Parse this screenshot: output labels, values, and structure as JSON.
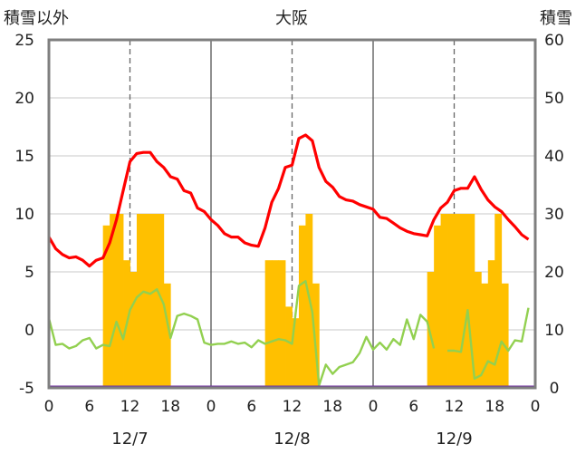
{
  "chart_data": {
    "type": "bar+line",
    "title": "大阪",
    "y_left_label": "積雪以外",
    "y_right_label": "積雪",
    "y_left_range": [
      -5,
      25
    ],
    "y_left_ticks": [
      "25",
      "20",
      "15",
      "10",
      "5",
      "0",
      "-5"
    ],
    "y_right_range": [
      0,
      60
    ],
    "y_right_ticks": [
      "60",
      "50",
      "40",
      "30",
      "20",
      "10",
      "0"
    ],
    "x_ticks": [
      "0",
      "6",
      "12",
      "18",
      "0",
      "6",
      "12",
      "18",
      "0",
      "6",
      "12",
      "18",
      "0"
    ],
    "x_tick_hours": [
      0,
      6,
      12,
      18,
      24,
      30,
      36,
      42,
      48,
      54,
      60,
      66,
      72
    ],
    "dates": [
      "12/7",
      "12/8",
      "12/9"
    ],
    "date_hours": [
      12,
      36,
      60
    ],
    "day_boundaries": [
      24,
      48
    ],
    "noon_lines": [
      12,
      36,
      60
    ],
    "snow_bars": {
      "axis": "right",
      "color": "#FFC000",
      "values": [
        [
          8,
          28
        ],
        [
          9,
          30
        ],
        [
          10,
          30
        ],
        [
          11,
          22
        ],
        [
          12,
          20
        ],
        [
          13,
          30
        ],
        [
          14,
          30
        ],
        [
          15,
          30
        ],
        [
          16,
          30
        ],
        [
          17,
          18
        ],
        [
          32,
          22
        ],
        [
          33,
          22
        ],
        [
          34,
          22
        ],
        [
          35,
          14
        ],
        [
          36,
          12
        ],
        [
          37,
          28
        ],
        [
          38,
          30
        ],
        [
          39,
          18
        ],
        [
          56,
          20
        ],
        [
          57,
          28
        ],
        [
          58,
          30
        ],
        [
          59,
          30
        ],
        [
          60,
          30
        ],
        [
          61,
          30
        ],
        [
          62,
          30
        ],
        [
          63,
          20
        ],
        [
          64,
          18
        ],
        [
          65,
          22
        ],
        [
          66,
          30
        ],
        [
          67,
          18
        ]
      ]
    },
    "series": [
      {
        "axis": "left",
        "color": "#FF0000",
        "values": [
          [
            0,
            8
          ],
          [
            1,
            7
          ],
          [
            2,
            6.5
          ],
          [
            3,
            6.2
          ],
          [
            4,
            6.3
          ],
          [
            5,
            6
          ],
          [
            6,
            5.5
          ],
          [
            7,
            6
          ],
          [
            8,
            6.2
          ],
          [
            9,
            7.5
          ],
          [
            10,
            9.5
          ],
          [
            11,
            12
          ],
          [
            12,
            14.5
          ],
          [
            13,
            15.2
          ],
          [
            14,
            15.3
          ],
          [
            15,
            15.3
          ],
          [
            16,
            14.5
          ],
          [
            17,
            14
          ],
          [
            18,
            13.2
          ],
          [
            19,
            13
          ],
          [
            20,
            12
          ],
          [
            21,
            11.8
          ],
          [
            22,
            10.5
          ],
          [
            23,
            10.2
          ],
          [
            24,
            9.5
          ],
          [
            25,
            9
          ],
          [
            26,
            8.3
          ],
          [
            27,
            8
          ],
          [
            28,
            8
          ],
          [
            29,
            7.5
          ],
          [
            30,
            7.3
          ],
          [
            31,
            7.2
          ],
          [
            32,
            8.8
          ],
          [
            33,
            11
          ],
          [
            34,
            12.2
          ],
          [
            35,
            14
          ],
          [
            36,
            14.2
          ],
          [
            37,
            16.5
          ],
          [
            38,
            16.8
          ],
          [
            39,
            16.3
          ],
          [
            40,
            14
          ],
          [
            41,
            12.8
          ],
          [
            42,
            12.3
          ],
          [
            43,
            11.5
          ],
          [
            44,
            11.2
          ],
          [
            45,
            11.1
          ],
          [
            46,
            10.8
          ],
          [
            47,
            10.6
          ],
          [
            48,
            10.4
          ],
          [
            49,
            9.7
          ],
          [
            50,
            9.6
          ],
          [
            51,
            9.2
          ],
          [
            52,
            8.8
          ],
          [
            53,
            8.5
          ],
          [
            54,
            8.3
          ],
          [
            55,
            8.2
          ],
          [
            56,
            8.1
          ],
          [
            57,
            9.5
          ],
          [
            58,
            10.5
          ],
          [
            59,
            11
          ],
          [
            60,
            12
          ],
          [
            61,
            12.2
          ],
          [
            62,
            12.2
          ],
          [
            63,
            13.2
          ],
          [
            64,
            12.1
          ],
          [
            65,
            11.2
          ],
          [
            66,
            10.6
          ],
          [
            67,
            10.2
          ],
          [
            68,
            9.5
          ],
          [
            69,
            8.9
          ],
          [
            70,
            8.2
          ],
          [
            71,
            7.8
          ]
        ]
      },
      {
        "axis": "left",
        "color": "#92D050",
        "values": [
          [
            0,
            1
          ],
          [
            1,
            -1.3
          ],
          [
            2,
            -1.2
          ],
          [
            3,
            -1.6
          ],
          [
            4,
            -1.4
          ],
          [
            5,
            -0.9
          ],
          [
            6,
            -0.7
          ],
          [
            7,
            -1.6
          ],
          [
            8,
            -1.3
          ],
          [
            9,
            -1.4
          ],
          [
            10,
            0.7
          ],
          [
            11,
            -0.8
          ],
          [
            12,
            1.7
          ],
          [
            13,
            2.8
          ],
          [
            14,
            3.3
          ],
          [
            15,
            3.1
          ],
          [
            16,
            3.5
          ],
          [
            17,
            2.2
          ],
          [
            18,
            -0.7
          ],
          [
            19,
            1.2
          ],
          [
            20,
            1.4
          ],
          [
            21,
            1.2
          ],
          [
            22,
            0.9
          ],
          [
            23,
            -1.1
          ],
          [
            24,
            -1.3
          ],
          [
            25,
            -1.2
          ],
          [
            26,
            -1.2
          ],
          [
            27,
            -1
          ],
          [
            28,
            -1.2
          ],
          [
            29,
            -1.1
          ],
          [
            30,
            -1.5
          ],
          [
            31,
            -0.9
          ],
          [
            32,
            -1.2
          ],
          [
            33,
            -1
          ],
          [
            34,
            -0.8
          ],
          [
            35,
            -0.9
          ],
          [
            36,
            -1.2
          ],
          [
            37,
            3.8
          ],
          [
            38,
            4.2
          ],
          [
            39,
            1.5
          ],
          [
            40,
            -4.8
          ],
          [
            41,
            -3
          ],
          [
            42,
            -3.8
          ],
          [
            43,
            -3.2
          ],
          [
            44,
            -3
          ],
          [
            45,
            -2.8
          ],
          [
            46,
            -2
          ],
          [
            47,
            -0.6
          ],
          [
            48,
            -1.7
          ],
          [
            49,
            -1.1
          ],
          [
            50,
            -1.7
          ],
          [
            51,
            -0.8
          ],
          [
            52,
            -1.3
          ],
          [
            53,
            0.9
          ],
          [
            54,
            -0.8
          ],
          [
            55,
            1.3
          ],
          [
            56,
            0.7
          ],
          [
            57,
            -1.6
          ],
          null,
          [
            59,
            -1.8
          ],
          [
            60,
            -1.8
          ],
          [
            61,
            -1.9
          ],
          [
            62,
            1.7
          ],
          [
            63,
            -4.2
          ],
          [
            64,
            -3.9
          ],
          [
            65,
            -2.7
          ],
          [
            66,
            -3
          ],
          [
            67,
            -1
          ],
          [
            68,
            -1.8
          ],
          [
            69,
            -0.9
          ],
          [
            70,
            -1
          ],
          [
            71,
            1.9
          ]
        ]
      }
    ],
    "baseline": {
      "value": -5,
      "color": "#7030A0"
    },
    "grid": {
      "horizontal": true,
      "vertical_dashed": true
    }
  }
}
